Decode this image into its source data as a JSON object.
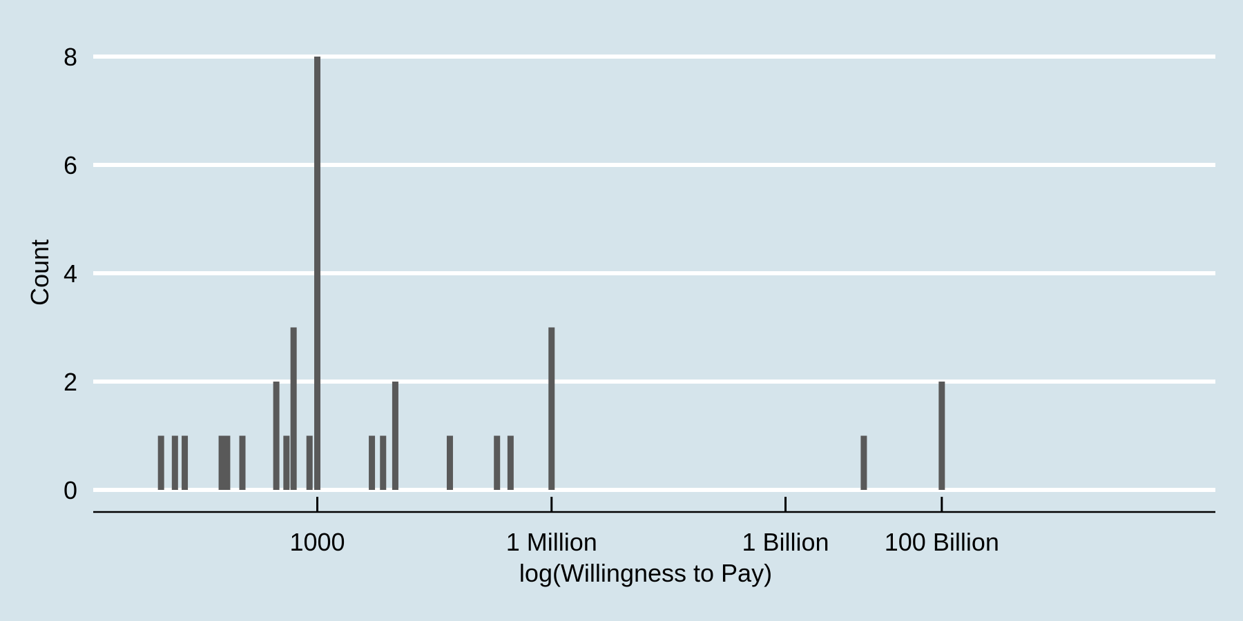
{
  "chart_data": {
    "type": "bar",
    "title": "",
    "xlabel": "log(Willingness to Pay)",
    "ylabel": "Count",
    "x_scale": "log10",
    "xlim": [
      0.3,
      33.4
    ],
    "ylim": [
      0,
      8
    ],
    "y_ticks": [
      {
        "value": 0,
        "label": "0"
      },
      {
        "value": 2,
        "label": "2"
      },
      {
        "value": 4,
        "label": "4"
      },
      {
        "value": 6,
        "label": "6"
      },
      {
        "value": 8,
        "label": "8"
      }
    ],
    "x_ticks": [
      {
        "value": 6.91,
        "label": "1000"
      },
      {
        "value": 13.82,
        "label": "1 Million"
      },
      {
        "value": 20.72,
        "label": "1 Billion"
      },
      {
        "value": 25.33,
        "label": "100 Billion"
      }
    ],
    "grid": "horizontal",
    "bar_color": "#595959",
    "bars": [
      {
        "x": 2.3,
        "count": 1
      },
      {
        "x": 2.71,
        "count": 1
      },
      {
        "x": 3.0,
        "count": 1
      },
      {
        "x": 4.09,
        "count": 1
      },
      {
        "x": 4.25,
        "count": 1
      },
      {
        "x": 4.7,
        "count": 1
      },
      {
        "x": 5.7,
        "count": 2
      },
      {
        "x": 6.0,
        "count": 1
      },
      {
        "x": 6.21,
        "count": 3
      },
      {
        "x": 6.68,
        "count": 1
      },
      {
        "x": 6.91,
        "count": 8
      },
      {
        "x": 8.52,
        "count": 1
      },
      {
        "x": 8.85,
        "count": 1
      },
      {
        "x": 9.21,
        "count": 2
      },
      {
        "x": 10.82,
        "count": 1
      },
      {
        "x": 12.21,
        "count": 1
      },
      {
        "x": 12.61,
        "count": 1
      },
      {
        "x": 13.82,
        "count": 3
      },
      {
        "x": 23.03,
        "count": 1
      },
      {
        "x": 25.33,
        "count": 2
      }
    ]
  },
  "colors": {
    "background": "#d5e4eb",
    "gridline": "#ffffff",
    "axis": "#000000"
  }
}
